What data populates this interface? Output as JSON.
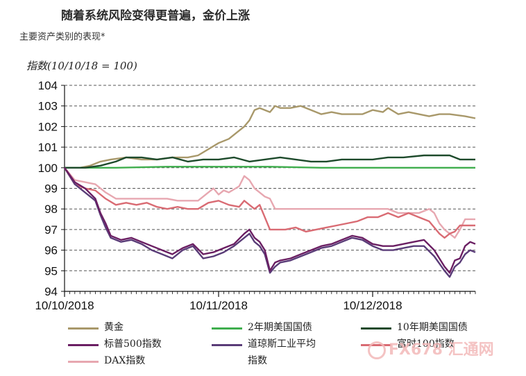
{
  "header": {
    "title": "随着系统风险变得更普遍，金价上涨",
    "subtitle": "主要资产类别的表现*"
  },
  "watermark": {
    "text": "FX678 汇通网"
  },
  "chart_data": {
    "type": "line",
    "ylabel": "指数(10/10/18 = 100)",
    "ylim": [
      94,
      104
    ],
    "yticks": [
      94,
      95,
      96,
      97,
      98,
      99,
      100,
      101,
      102,
      103,
      104
    ],
    "xlim": [
      0,
      80
    ],
    "xticks": [
      {
        "x": 0,
        "label": "10/10/2018"
      },
      {
        "x": 30,
        "label": "10/11/2018"
      },
      {
        "x": 60,
        "label": "10/12/2018"
      }
    ],
    "grid": "horizontal-dashed",
    "legend_position": "bottom",
    "series": [
      {
        "name": "黄金",
        "color": "#a8986a",
        "points": [
          [
            0,
            100.0
          ],
          [
            3,
            100.0
          ],
          [
            5,
            100.1
          ],
          [
            7,
            100.3
          ],
          [
            9,
            100.4
          ],
          [
            12,
            100.5
          ],
          [
            15,
            100.4
          ],
          [
            18,
            100.4
          ],
          [
            21,
            100.5
          ],
          [
            24,
            100.5
          ],
          [
            26,
            100.6
          ],
          [
            28,
            100.9
          ],
          [
            30,
            101.2
          ],
          [
            32,
            101.4
          ],
          [
            34,
            101.8
          ],
          [
            35,
            102.0
          ],
          [
            36,
            102.3
          ],
          [
            37,
            102.8
          ],
          [
            38,
            102.9
          ],
          [
            40,
            102.7
          ],
          [
            41,
            103.0
          ],
          [
            42,
            102.9
          ],
          [
            44,
            102.9
          ],
          [
            46,
            103.0
          ],
          [
            48,
            102.8
          ],
          [
            50,
            102.6
          ],
          [
            52,
            102.7
          ],
          [
            54,
            102.6
          ],
          [
            56,
            102.6
          ],
          [
            58,
            102.6
          ],
          [
            60,
            102.8
          ],
          [
            62,
            102.7
          ],
          [
            63,
            102.9
          ],
          [
            65,
            102.6
          ],
          [
            67,
            102.7
          ],
          [
            69,
            102.6
          ],
          [
            71,
            102.5
          ],
          [
            73,
            102.6
          ],
          [
            75,
            102.6
          ],
          [
            78,
            102.5
          ],
          [
            80,
            102.4
          ]
        ]
      },
      {
        "name": "2年期美国国债",
        "color": "#3fae4d",
        "points": [
          [
            0,
            100.0
          ],
          [
            10,
            100.0
          ],
          [
            20,
            100.05
          ],
          [
            30,
            100.05
          ],
          [
            40,
            100.05
          ],
          [
            50,
            100.0
          ],
          [
            60,
            100.0
          ],
          [
            70,
            100.0
          ],
          [
            80,
            100.0
          ]
        ]
      },
      {
        "name": "10年期美国国债",
        "color": "#1d4a2b",
        "points": [
          [
            0,
            100.0
          ],
          [
            4,
            100.0
          ],
          [
            7,
            100.1
          ],
          [
            10,
            100.3
          ],
          [
            12,
            100.5
          ],
          [
            15,
            100.5
          ],
          [
            18,
            100.4
          ],
          [
            21,
            100.5
          ],
          [
            24,
            100.3
          ],
          [
            27,
            100.4
          ],
          [
            30,
            100.4
          ],
          [
            33,
            100.5
          ],
          [
            36,
            100.3
          ],
          [
            39,
            100.4
          ],
          [
            42,
            100.5
          ],
          [
            45,
            100.4
          ],
          [
            48,
            100.3
          ],
          [
            51,
            100.3
          ],
          [
            54,
            100.4
          ],
          [
            57,
            100.4
          ],
          [
            60,
            100.4
          ],
          [
            63,
            100.5
          ],
          [
            66,
            100.5
          ],
          [
            70,
            100.6
          ],
          [
            72,
            100.6
          ],
          [
            75,
            100.6
          ],
          [
            77,
            100.4
          ],
          [
            80,
            100.4
          ]
        ]
      },
      {
        "name": "标普500指数",
        "color": "#6b1f63",
        "points": [
          [
            0,
            100.0
          ],
          [
            2,
            99.3
          ],
          [
            4,
            99.0
          ],
          [
            6,
            98.5
          ],
          [
            7,
            97.8
          ],
          [
            8,
            97.3
          ],
          [
            9,
            96.7
          ],
          [
            11,
            96.5
          ],
          [
            13,
            96.6
          ],
          [
            15,
            96.4
          ],
          [
            17,
            96.2
          ],
          [
            19,
            96.0
          ],
          [
            21,
            95.8
          ],
          [
            23,
            96.1
          ],
          [
            25,
            96.3
          ],
          [
            27,
            95.8
          ],
          [
            29,
            95.9
          ],
          [
            31,
            96.1
          ],
          [
            33,
            96.3
          ],
          [
            35,
            96.8
          ],
          [
            36,
            97.0
          ],
          [
            37,
            96.6
          ],
          [
            38,
            96.4
          ],
          [
            39,
            96.0
          ],
          [
            40,
            95.0
          ],
          [
            41,
            95.4
          ],
          [
            42,
            95.5
          ],
          [
            44,
            95.6
          ],
          [
            46,
            95.8
          ],
          [
            48,
            96.0
          ],
          [
            50,
            96.2
          ],
          [
            52,
            96.3
          ],
          [
            54,
            96.5
          ],
          [
            56,
            96.7
          ],
          [
            58,
            96.6
          ],
          [
            60,
            96.3
          ],
          [
            62,
            96.2
          ],
          [
            64,
            96.2
          ],
          [
            66,
            96.3
          ],
          [
            68,
            96.4
          ],
          [
            70,
            96.5
          ],
          [
            72,
            96.0
          ],
          [
            74,
            95.2
          ],
          [
            75,
            94.9
          ],
          [
            76,
            95.5
          ],
          [
            77,
            95.6
          ],
          [
            78,
            96.2
          ],
          [
            79,
            96.4
          ],
          [
            80,
            96.3
          ]
        ]
      },
      {
        "name": "道琼斯工业平均指数",
        "color": "#5a3c78",
        "points": [
          [
            0,
            100.0
          ],
          [
            2,
            99.2
          ],
          [
            4,
            98.8
          ],
          [
            6,
            98.4
          ],
          [
            7,
            97.7
          ],
          [
            8,
            97.1
          ],
          [
            9,
            96.6
          ],
          [
            11,
            96.4
          ],
          [
            13,
            96.5
          ],
          [
            15,
            96.3
          ],
          [
            17,
            96.0
          ],
          [
            19,
            95.8
          ],
          [
            21,
            95.6
          ],
          [
            23,
            96.0
          ],
          [
            25,
            96.2
          ],
          [
            27,
            95.6
          ],
          [
            29,
            95.7
          ],
          [
            31,
            95.9
          ],
          [
            33,
            96.2
          ],
          [
            35,
            96.6
          ],
          [
            36,
            96.8
          ],
          [
            37,
            96.4
          ],
          [
            38,
            96.2
          ],
          [
            39,
            95.8
          ],
          [
            40,
            94.9
          ],
          [
            41,
            95.2
          ],
          [
            42,
            95.4
          ],
          [
            44,
            95.5
          ],
          [
            46,
            95.7
          ],
          [
            48,
            95.9
          ],
          [
            50,
            96.1
          ],
          [
            52,
            96.2
          ],
          [
            54,
            96.4
          ],
          [
            56,
            96.6
          ],
          [
            58,
            96.5
          ],
          [
            60,
            96.2
          ],
          [
            62,
            96.0
          ],
          [
            64,
            96.0
          ],
          [
            66,
            96.1
          ],
          [
            68,
            96.2
          ],
          [
            70,
            96.2
          ],
          [
            72,
            95.7
          ],
          [
            74,
            95.0
          ],
          [
            75,
            94.7
          ],
          [
            76,
            95.2
          ],
          [
            77,
            95.4
          ],
          [
            78,
            95.8
          ],
          [
            79,
            96.0
          ],
          [
            80,
            95.9
          ]
        ]
      },
      {
        "name": "富时100指数",
        "color": "#d96b73",
        "points": [
          [
            0,
            100.0
          ],
          [
            2,
            99.2
          ],
          [
            4,
            99.0
          ],
          [
            6,
            98.9
          ],
          [
            8,
            98.5
          ],
          [
            10,
            98.2
          ],
          [
            12,
            98.3
          ],
          [
            14,
            98.2
          ],
          [
            16,
            98.3
          ],
          [
            18,
            98.1
          ],
          [
            20,
            98.0
          ],
          [
            22,
            98.1
          ],
          [
            24,
            98.0
          ],
          [
            26,
            98.0
          ],
          [
            28,
            98.3
          ],
          [
            30,
            98.4
          ],
          [
            32,
            98.2
          ],
          [
            34,
            98.1
          ],
          [
            35,
            98.4
          ],
          [
            36,
            98.2
          ],
          [
            37,
            98.0
          ],
          [
            38,
            98.2
          ],
          [
            39,
            97.6
          ],
          [
            40,
            97.0
          ],
          [
            41,
            97.0
          ],
          [
            43,
            97.0
          ],
          [
            45,
            97.1
          ],
          [
            47,
            96.9
          ],
          [
            49,
            97.0
          ],
          [
            51,
            97.1
          ],
          [
            53,
            97.2
          ],
          [
            55,
            97.3
          ],
          [
            57,
            97.4
          ],
          [
            59,
            97.6
          ],
          [
            61,
            97.6
          ],
          [
            63,
            97.8
          ],
          [
            65,
            97.6
          ],
          [
            67,
            97.8
          ],
          [
            69,
            97.6
          ],
          [
            71,
            97.4
          ],
          [
            72,
            97.1
          ],
          [
            73,
            96.8
          ],
          [
            74,
            96.6
          ],
          [
            75,
            96.8
          ],
          [
            76,
            96.9
          ],
          [
            77,
            97.2
          ],
          [
            78,
            97.2
          ],
          [
            80,
            97.2
          ]
        ]
      },
      {
        "name": "DAX指数",
        "color": "#e7a7b0",
        "points": [
          [
            0,
            100.0
          ],
          [
            2,
            99.4
          ],
          [
            4,
            99.3
          ],
          [
            6,
            99.2
          ],
          [
            8,
            98.8
          ],
          [
            10,
            98.5
          ],
          [
            12,
            98.5
          ],
          [
            14,
            98.5
          ],
          [
            16,
            98.5
          ],
          [
            18,
            98.5
          ],
          [
            20,
            98.5
          ],
          [
            22,
            98.4
          ],
          [
            24,
            98.4
          ],
          [
            26,
            98.4
          ],
          [
            28,
            98.8
          ],
          [
            29,
            99.0
          ],
          [
            30,
            98.7
          ],
          [
            31,
            98.9
          ],
          [
            32,
            98.8
          ],
          [
            34,
            99.1
          ],
          [
            35,
            99.6
          ],
          [
            36,
            99.4
          ],
          [
            37,
            99.0
          ],
          [
            38,
            98.8
          ],
          [
            39,
            98.6
          ],
          [
            40,
            98.5
          ],
          [
            41,
            98.0
          ],
          [
            43,
            98.0
          ],
          [
            45,
            98.0
          ],
          [
            47,
            98.0
          ],
          [
            49,
            98.0
          ],
          [
            51,
            98.0
          ],
          [
            53,
            98.0
          ],
          [
            55,
            98.0
          ],
          [
            57,
            98.0
          ],
          [
            59,
            98.0
          ],
          [
            61,
            98.0
          ],
          [
            63,
            98.0
          ],
          [
            65,
            97.8
          ],
          [
            67,
            97.8
          ],
          [
            69,
            97.8
          ],
          [
            71,
            98.0
          ],
          [
            72,
            97.8
          ],
          [
            73,
            97.3
          ],
          [
            74,
            97.0
          ],
          [
            75,
            96.8
          ],
          [
            76,
            96.6
          ],
          [
            77,
            97.0
          ],
          [
            78,
            97.5
          ],
          [
            80,
            97.5
          ]
        ]
      }
    ]
  }
}
